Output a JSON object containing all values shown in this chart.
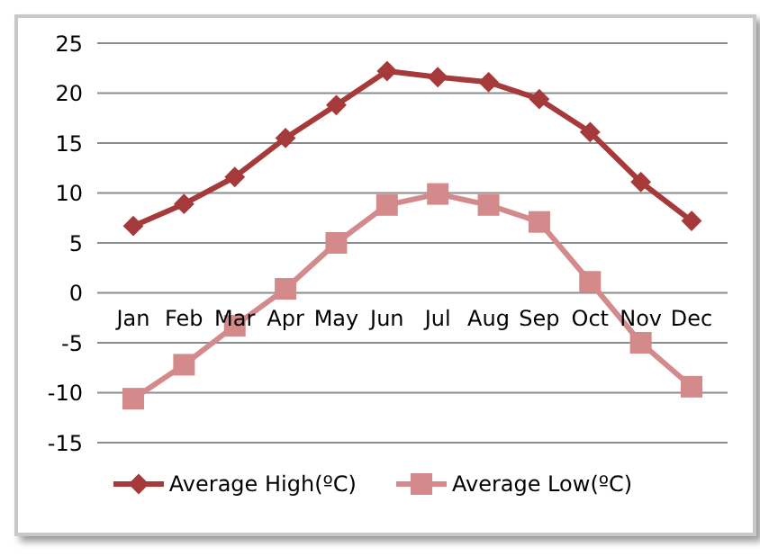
{
  "chart_data": {
    "type": "line",
    "categories": [
      "Jan",
      "Feb",
      "Mar",
      "Apr",
      "May",
      "Jun",
      "Jul",
      "Aug",
      "Sep",
      "Oct",
      "Nov",
      "Dec"
    ],
    "series": [
      {
        "name": "Average High(ºC)",
        "color": "#a63a3a",
        "marker": "diamond",
        "values": [
          6.7,
          8.9,
          11.6,
          15.5,
          18.8,
          22.2,
          21.6,
          21.1,
          19.4,
          16.1,
          11.1,
          7.2
        ]
      },
      {
        "name": "Average Low(ºC)",
        "color": "#d48a8a",
        "marker": "square",
        "values": [
          -10.6,
          -7.2,
          -3.3,
          0.4,
          5.0,
          8.8,
          9.9,
          8.8,
          7.1,
          1.1,
          -5.0,
          -9.4
        ]
      }
    ],
    "ylim": [
      -15,
      25
    ],
    "yticks": [
      -15,
      -10,
      -5,
      0,
      5,
      10,
      15,
      20,
      25
    ],
    "grid": "y",
    "legend": "bottom"
  }
}
